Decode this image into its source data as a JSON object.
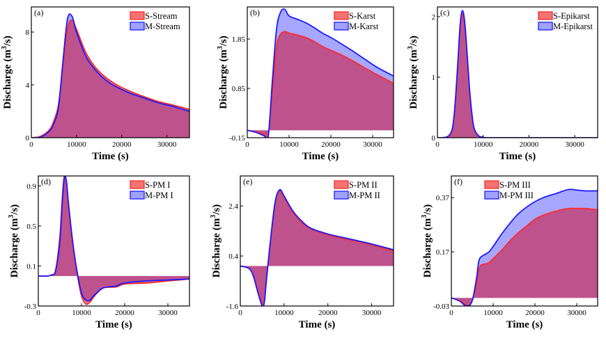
{
  "chart_data": [
    {
      "type": "area",
      "tag": "(a)",
      "xlabel": "Time (s)",
      "ylabel": "Discharge (m3/s)",
      "xlim": [
        0,
        35000
      ],
      "ylim": [
        0,
        9.9
      ],
      "xticks": [
        0,
        10000,
        20000,
        30000
      ],
      "yticks": [
        0,
        4,
        8
      ],
      "legend_position": "top-right",
      "x": [
        0,
        2000,
        4000,
        5000,
        6000,
        7000,
        8000,
        9000,
        10000,
        12000,
        14000,
        16000,
        18000,
        20000,
        22000,
        25000,
        28000,
        31000,
        35000
      ],
      "series": [
        {
          "name": "S-Stream",
          "color": "#ff2a2a",
          "values": [
            0,
            0.1,
            0.6,
            1.3,
            2.5,
            5.5,
            8.3,
            8.9,
            8.2,
            6.5,
            5.4,
            4.7,
            4.2,
            3.8,
            3.5,
            3.1,
            2.75,
            2.5,
            2.15
          ]
        },
        {
          "name": "M-Stream",
          "color": "#1a1aff",
          "values": [
            0,
            0.05,
            0.5,
            1.1,
            2.3,
            5.8,
            9.0,
            9.2,
            8.0,
            6.2,
            5.2,
            4.5,
            4.0,
            3.65,
            3.35,
            3.0,
            2.65,
            2.4,
            2.0
          ]
        }
      ]
    },
    {
      "type": "area",
      "tag": "(b)",
      "xlabel": "Time (s)",
      "ylabel": "Discharge (m3/s)",
      "xlim": [
        0,
        35000
      ],
      "ylim": [
        -0.15,
        2.5
      ],
      "xticks": [
        0,
        10000,
        20000,
        30000
      ],
      "yticks": [
        -0.15,
        0.85,
        1.85
      ],
      "legend_position": "top-right",
      "x": [
        0,
        2000,
        4000,
        5000,
        6000,
        7000,
        8000,
        9000,
        10000,
        12000,
        14000,
        16000,
        18000,
        20000,
        22000,
        25000,
        28000,
        31000,
        35000
      ],
      "series": [
        {
          "name": "S-Karst",
          "color": "#ff2a2a",
          "values": [
            0,
            -0.03,
            -0.08,
            -0.1,
            0.8,
            1.7,
            1.95,
            2.0,
            1.97,
            1.93,
            1.88,
            1.8,
            1.7,
            1.62,
            1.55,
            1.42,
            1.27,
            1.13,
            0.95
          ]
        },
        {
          "name": "M-Karst",
          "color": "#1a1aff",
          "values": [
            0,
            -0.04,
            -0.11,
            -0.13,
            1.0,
            2.05,
            2.4,
            2.45,
            2.32,
            2.25,
            2.18,
            2.08,
            1.97,
            1.88,
            1.78,
            1.62,
            1.45,
            1.28,
            1.1
          ]
        }
      ]
    },
    {
      "type": "area",
      "tag": "(c)",
      "xlabel": "Time (s)",
      "ylabel": "Discharge (m3/s)",
      "xlim": [
        0,
        35000
      ],
      "ylim": [
        0,
        2.16
      ],
      "xticks": [
        0,
        10000,
        20000,
        30000
      ],
      "yticks": [
        0,
        1,
        2
      ],
      "legend_position": "top-right",
      "x": [
        0,
        2000,
        3000,
        3500,
        4000,
        4500,
        5000,
        5500,
        6000,
        6500,
        7000,
        7500,
        8000,
        9000,
        10000,
        12000,
        35000
      ],
      "series": [
        {
          "name": "S-Epikarst",
          "color": "#ff2a2a",
          "values": [
            0,
            0.01,
            0.08,
            0.25,
            0.65,
            1.25,
            1.85,
            2.05,
            1.85,
            1.35,
            0.8,
            0.4,
            0.15,
            0.03,
            0.01,
            0,
            0
          ]
        },
        {
          "name": "M-Epikarst",
          "color": "#1a1aff",
          "values": [
            0,
            0.01,
            0.09,
            0.27,
            0.7,
            1.3,
            1.9,
            2.1,
            1.88,
            1.37,
            0.82,
            0.42,
            0.16,
            0.03,
            0.01,
            0,
            0
          ]
        }
      ]
    },
    {
      "type": "area",
      "tag": "(d)",
      "xlabel": "Time (s)",
      "ylabel": "Discharge (m3/s)",
      "xlim": [
        0,
        35000
      ],
      "ylim": [
        -0.3,
        1.0
      ],
      "xticks": [
        0,
        10000,
        20000,
        30000
      ],
      "yticks": [
        -0.3,
        0.1,
        0.5,
        0.9
      ],
      "legend_position": "top-right",
      "x": [
        0,
        2000,
        3000,
        4000,
        5000,
        5500,
        6000,
        6500,
        7000,
        8000,
        9000,
        10000,
        11000,
        12000,
        13000,
        15000,
        18000,
        20000,
        25000,
        30000,
        35000
      ],
      "series": [
        {
          "name": "S-PM I",
          "color": "#ff2a2a",
          "values": [
            0,
            0,
            0.01,
            0.06,
            0.4,
            0.75,
            1.0,
            0.95,
            0.7,
            0.3,
            0.02,
            -0.2,
            -0.28,
            -0.26,
            -0.2,
            -0.12,
            -0.11,
            -0.08,
            -0.07,
            -0.05,
            -0.03
          ]
        },
        {
          "name": "M-PM I",
          "color": "#1a1aff",
          "values": [
            0,
            0,
            0.01,
            0.05,
            0.35,
            0.7,
            0.97,
            0.95,
            0.72,
            0.33,
            0.04,
            -0.17,
            -0.24,
            -0.24,
            -0.19,
            -0.12,
            -0.1,
            -0.07,
            -0.05,
            -0.04,
            -0.03
          ]
        }
      ]
    },
    {
      "type": "area",
      "tag": "(e)",
      "xlabel": "Time (s)",
      "ylabel": "Discharge (m3/s)",
      "xlim": [
        0,
        35000
      ],
      "ylim": [
        -1.6,
        3.6
      ],
      "xticks": [
        0,
        10000,
        20000,
        30000
      ],
      "yticks": [
        -1.6,
        0.4,
        2.4
      ],
      "legend_position": "top-right",
      "x": [
        0,
        2000,
        3000,
        4000,
        5000,
        5500,
        6000,
        7000,
        8000,
        9000,
        10000,
        12000,
        14000,
        16000,
        20000,
        25000,
        30000,
        35000
      ],
      "series": [
        {
          "name": "S-PM II",
          "color": "#ff2a2a",
          "values": [
            0,
            -0.1,
            -0.4,
            -1.0,
            -1.55,
            -1.4,
            -0.5,
            1.2,
            2.6,
            3.0,
            2.75,
            2.15,
            1.75,
            1.5,
            1.25,
            1.05,
            0.85,
            0.6
          ]
        },
        {
          "name": "M-PM II",
          "color": "#1a1aff",
          "values": [
            0,
            -0.1,
            -0.42,
            -1.05,
            -1.6,
            -1.45,
            -0.5,
            1.2,
            2.6,
            3.05,
            2.8,
            2.2,
            1.8,
            1.52,
            1.28,
            1.08,
            0.88,
            0.65
          ]
        }
      ]
    },
    {
      "type": "area",
      "tag": "(f)",
      "xlabel": "Time (s)",
      "ylabel": "Discharge (m3/s)",
      "xlim": [
        0,
        35000
      ],
      "ylim": [
        -0.03,
        0.45
      ],
      "xticks": [
        0,
        10000,
        20000,
        30000
      ],
      "yticks": [
        -0.03,
        0.17,
        0.37
      ],
      "legend_position": "top-left",
      "x": [
        0,
        2000,
        3000,
        4000,
        5000,
        6000,
        6500,
        7000,
        8000,
        9000,
        10000,
        12000,
        14000,
        16000,
        18000,
        20000,
        22000,
        25000,
        28000,
        30000,
        32000,
        35000
      ],
      "series": [
        {
          "name": "S-PM III",
          "color": "#ff2a2a",
          "values": [
            0,
            -0.01,
            -0.02,
            -0.028,
            -0.01,
            0.05,
            0.1,
            0.12,
            0.125,
            0.13,
            0.145,
            0.175,
            0.21,
            0.24,
            0.265,
            0.29,
            0.305,
            0.32,
            0.33,
            0.33,
            0.33,
            0.325
          ]
        },
        {
          "name": "M-PM III",
          "color": "#1a1aff",
          "values": [
            0,
            -0.012,
            -0.025,
            -0.03,
            -0.01,
            0.07,
            0.13,
            0.15,
            0.16,
            0.17,
            0.19,
            0.235,
            0.275,
            0.31,
            0.335,
            0.355,
            0.37,
            0.385,
            0.4,
            0.398,
            0.395,
            0.395
          ]
        }
      ]
    }
  ]
}
